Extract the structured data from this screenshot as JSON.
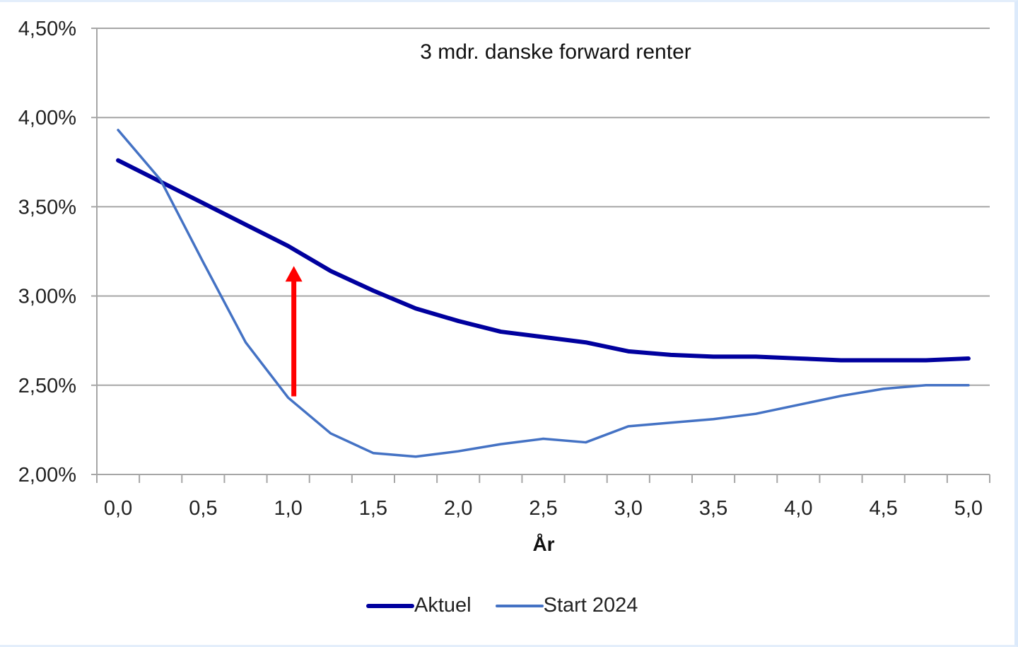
{
  "chart_data": {
    "type": "line",
    "title": "3 mdr. danske forward renter",
    "xlabel": "År",
    "ylabel": "",
    "ylim": [
      2.0,
      4.5
    ],
    "y_ticks": [
      "2,00%",
      "2,50%",
      "3,00%",
      "3,50%",
      "4,00%",
      "4,50%"
    ],
    "y_tick_values": [
      2.0,
      2.5,
      3.0,
      3.5,
      4.0,
      4.5
    ],
    "x_tick_labels": [
      "0,0",
      "0,5",
      "1,0",
      "1,5",
      "2,0",
      "2,5",
      "3,0",
      "3,5",
      "4,0",
      "4,5",
      "5,0"
    ],
    "x": [
      0.0,
      0.25,
      0.5,
      0.75,
      1.0,
      1.25,
      1.5,
      1.75,
      2.0,
      2.25,
      2.5,
      2.75,
      3.0,
      3.25,
      3.5,
      3.75,
      4.0,
      4.25,
      4.5,
      4.75,
      5.0
    ],
    "grid": true,
    "legend_position": "bottom",
    "series": [
      {
        "name": "Aktuel",
        "color": "#00009e",
        "values": [
          3.76,
          3.64,
          3.52,
          3.4,
          3.28,
          3.14,
          3.03,
          2.93,
          2.86,
          2.8,
          2.77,
          2.74,
          2.69,
          2.67,
          2.66,
          2.66,
          2.65,
          2.64,
          2.64,
          2.64,
          2.65
        ]
      },
      {
        "name": "Start 2024",
        "color": "#4472c4",
        "values": [
          3.93,
          3.65,
          3.19,
          2.74,
          2.43,
          2.23,
          2.12,
          2.1,
          2.13,
          2.17,
          2.2,
          2.18,
          2.27,
          2.29,
          2.31,
          2.34,
          2.39,
          2.44,
          2.48,
          2.5,
          2.5
        ]
      }
    ],
    "annotations": [
      {
        "type": "arrow",
        "color": "#ff0000",
        "x": 1.0,
        "from": 2.43,
        "to": 3.16,
        "direction": "up"
      }
    ]
  },
  "legend": {
    "items": [
      {
        "label": "Aktuel"
      },
      {
        "label": "Start 2024"
      }
    ]
  }
}
